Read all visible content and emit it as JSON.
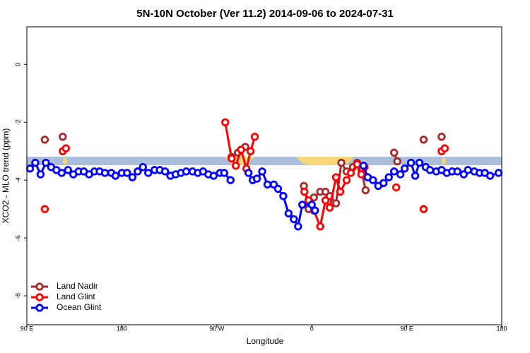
{
  "chart_data": {
    "type": "line",
    "title": "5N-10N October (Ver 11.2)   2014-09-06 to 2024-07-31",
    "x_label": "Longitude",
    "y_label": "XCO2 - MLO trend (ppm)",
    "xlim": [
      90,
      540
    ],
    "ylim": [
      -9,
      1.3
    ],
    "xticks": [
      {
        "value": 90,
        "label": "90 E"
      },
      {
        "value": 180,
        "label": "180"
      },
      {
        "value": 270,
        "label": "90 W"
      },
      {
        "value": 360,
        "label": "0"
      },
      {
        "value": 450,
        "label": "90 E"
      },
      {
        "value": 540,
        "label": "180"
      }
    ],
    "yticks": [
      0,
      -2,
      -4,
      -6,
      -8
    ],
    "legend": "bottomleft",
    "series": [
      {
        "name": "Land Nadir",
        "color": "#a52a2a",
        "x": [
          107,
          null,
          124,
          null,
          284,
          290,
          297,
          302,
          null,
          352.5,
          357,
          362,
          368,
          373,
          377,
          383,
          388,
          393,
          399,
          403,
          407,
          411,
          null,
          438,
          441,
          null,
          466,
          null,
          483
        ],
        "values": [
          -2.6,
          null,
          -2.5,
          null,
          -3.2,
          -3.05,
          -2.85,
          -3.0,
          null,
          -4.2,
          -5.0,
          -4.6,
          -4.4,
          -4.4,
          -4.55,
          -4.8,
          -3.4,
          -3.7,
          -3.55,
          -3.4,
          -3.65,
          -4.35,
          null,
          -3.05,
          -3.35,
          null,
          -2.6,
          null,
          -2.5
        ]
      },
      {
        "name": "Land Glint",
        "color": "#ff0000",
        "x": [
          107,
          null,
          124,
          127,
          null,
          278,
          284,
          288,
          293,
          298,
          302,
          306,
          null,
          353,
          357,
          362,
          368,
          373,
          377,
          383,
          387,
          393,
          397,
          403,
          407,
          410,
          null,
          440,
          null,
          466,
          null,
          483,
          486
        ],
        "values": [
          -5.0,
          null,
          -3.0,
          -2.9,
          null,
          -2.0,
          -3.25,
          -3.5,
          -2.95,
          -3.6,
          -3.0,
          -2.5,
          null,
          -4.4,
          -4.7,
          -5.05,
          -5.6,
          -4.7,
          -4.95,
          -3.9,
          -4.4,
          -4.0,
          -3.75,
          -3.45,
          -3.8,
          -3.55,
          null,
          -4.25,
          null,
          -5.0,
          null,
          -3.0,
          -2.9
        ]
      },
      {
        "name": "Ocean Glint",
        "color": "#0000ff",
        "x": [
          93,
          98,
          103,
          108,
          113,
          118,
          123,
          129,
          134,
          139,
          144,
          149,
          154,
          159,
          164,
          170,
          174,
          180,
          185,
          190,
          195,
          200,
          205,
          211,
          216,
          221,
          226,
          231,
          236,
          241,
          247,
          252,
          257,
          262,
          267,
          273,
          277,
          283,
          null,
          300,
          304,
          308,
          313,
          318,
          324,
          328,
          333,
          338,
          343,
          347,
          351,
          360,
          363,
          null,
          409,
          413,
          418,
          423,
          428,
          433,
          438,
          444,
          448,
          454,
          458,
          462,
          468,
          472,
          478,
          483,
          488,
          493,
          498,
          504,
          508,
          514,
          519,
          524,
          529,
          537
        ],
        "values": [
          -3.6,
          -3.4,
          -3.8,
          -3.4,
          -3.55,
          -3.65,
          -3.75,
          -3.65,
          -3.8,
          -3.7,
          -3.7,
          -3.8,
          -3.7,
          -3.7,
          -3.75,
          -3.75,
          -3.85,
          -3.75,
          -3.75,
          -3.9,
          -3.7,
          -3.55,
          -3.75,
          -3.65,
          -3.65,
          -3.7,
          -3.85,
          -3.8,
          -3.75,
          -3.7,
          -3.7,
          -3.75,
          -3.7,
          -3.8,
          -3.85,
          -3.75,
          -3.75,
          -4.0,
          null,
          -3.75,
          -4.0,
          -3.95,
          -3.7,
          -4.15,
          -4.15,
          -4.3,
          -4.55,
          -5.15,
          -5.35,
          -5.6,
          -4.85,
          -4.85,
          -5.05,
          null,
          -3.5,
          -3.9,
          -4.0,
          -4.2,
          -4.1,
          -3.9,
          -3.7,
          -3.8,
          -3.6,
          -3.4,
          -3.85,
          -3.4,
          -3.55,
          -3.65,
          -3.7,
          -3.65,
          -3.75,
          -3.7,
          -3.7,
          -3.8,
          -3.65,
          -3.7,
          -3.75,
          -3.75,
          -3.85,
          -3.75
        ]
      }
    ]
  }
}
